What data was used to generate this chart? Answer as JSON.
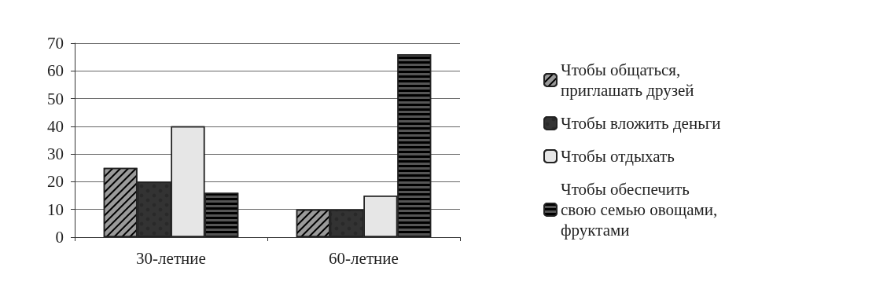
{
  "chart_data": {
    "type": "bar",
    "categories": [
      "30-летние",
      "60-летние"
    ],
    "series": [
      {
        "name": "Чтобы общаться, приглашать друзей",
        "color": "#9a9a9a",
        "values": [
          25,
          10
        ]
      },
      {
        "name": "Чтобы вложить деньги",
        "color": "#333333",
        "values": [
          20,
          10
        ]
      },
      {
        "name": "Чтобы отдыхать",
        "color": "#e6e6e6",
        "values": [
          40,
          15
        ]
      },
      {
        "name": "Чтобы обеспечить свою семью овощами, фруктами",
        "color": "#555555",
        "values": [
          16,
          66
        ]
      }
    ],
    "ylim": [
      0,
      70
    ],
    "yticks": [
      0,
      10,
      20,
      30,
      40,
      50,
      60,
      70
    ],
    "grid": "y",
    "legend": "right"
  }
}
